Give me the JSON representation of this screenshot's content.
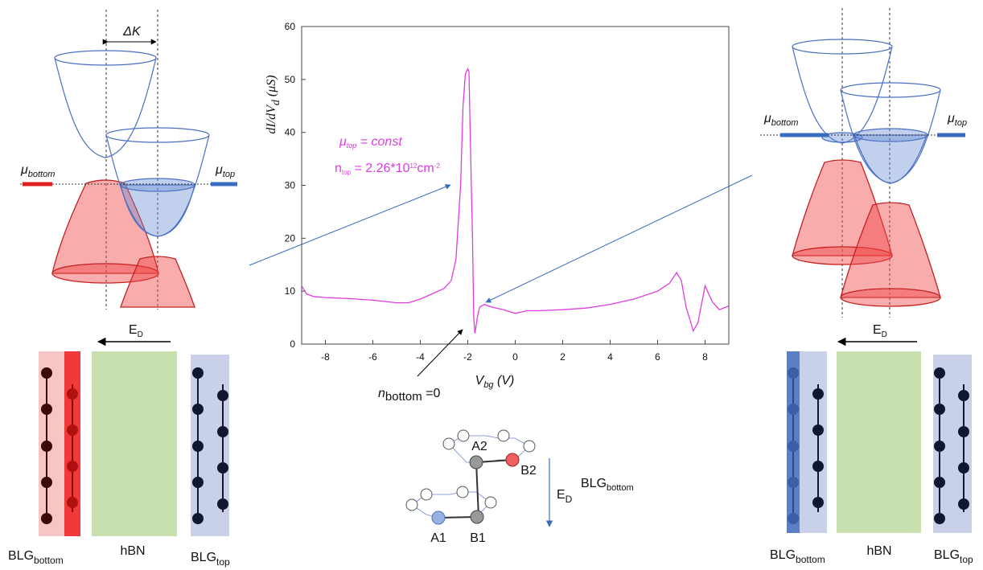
{
  "chart_data": {
    "type": "line",
    "xlabel": {
      "base": "V",
      "sub": "bg",
      "unit": " (V)"
    },
    "ylabel": {
      "base": "dI/dV",
      "sub": "d",
      "unit": " (μS)"
    },
    "xlim": [
      -9,
      9
    ],
    "ylim": [
      0,
      60
    ],
    "xticks": [
      -8,
      -6,
      -4,
      -2,
      0,
      2,
      4,
      6,
      8
    ],
    "yticks": [
      0,
      10,
      20,
      30,
      40,
      50,
      60
    ],
    "x": [
      -9,
      -8.8,
      -8.5,
      -8,
      -7,
      -6,
      -5,
      -4.5,
      -4,
      -3.5,
      -3,
      -2.7,
      -2.5,
      -2.3,
      -2.2,
      -2.1,
      -2.0,
      -1.95,
      -1.9,
      -1.8,
      -1.75,
      -1.7,
      -1.6,
      -1.5,
      -1.3,
      -1.0,
      -0.5,
      0,
      0.5,
      1,
      2,
      3,
      4,
      5,
      6,
      6.5,
      6.8,
      7.0,
      7.2,
      7.5,
      7.7,
      8.0,
      8.3,
      8.6,
      9
    ],
    "series": [
      {
        "color": "#e03ce0",
        "values": [
          11,
          9.5,
          9,
          8.8,
          8.6,
          8.3,
          7.8,
          7.8,
          8.5,
          9.5,
          10.5,
          12,
          16,
          30,
          45,
          51,
          52,
          51.5,
          40,
          20,
          5,
          2,
          5,
          7,
          7.5,
          7,
          6.5,
          5.8,
          6.3,
          6.3,
          6.5,
          6.8,
          7.5,
          8.5,
          10,
          11.5,
          13.5,
          12,
          7,
          2.5,
          4,
          11,
          8,
          6.5,
          7.2
        ]
      }
    ],
    "annotations": {
      "mu_top": {
        "base": "μ",
        "sub": "top",
        "rest": " = const"
      },
      "n_top": {
        "base": "n",
        "sub": "top",
        "rest": " = 2.26*10",
        "exp": "12",
        "unit": "cm",
        "unit_exp": "-2"
      },
      "n_bottom": {
        "base": "n",
        "sub": "bottom",
        "rest": " =0"
      }
    }
  },
  "left_panel": {
    "delta_k": "ΔK",
    "mu_bottom": {
      "base": "μ",
      "sub": "bottom"
    },
    "mu_top": {
      "base": "μ",
      "sub": "top"
    },
    "field": {
      "base": "E",
      "sub": "D"
    },
    "blg_bottom": {
      "base": "BLG",
      "sub": "bottom"
    },
    "hbn": "hBN",
    "blg_top": {
      "base": "BLG",
      "sub": "top"
    }
  },
  "right_panel": {
    "mu_bottom": {
      "base": "μ",
      "sub": "bottom"
    },
    "mu_top": {
      "base": "μ",
      "sub": "top"
    },
    "field": {
      "base": "E",
      "sub": "D"
    },
    "blg_bottom": {
      "base": "BLG",
      "sub": "bottom"
    },
    "hbn": "hBN",
    "blg_top": {
      "base": "BLG",
      "sub": "top"
    }
  },
  "lattice": {
    "sites": [
      "A1",
      "A2",
      "B1",
      "B2"
    ],
    "field": {
      "base": "E",
      "sub": "D"
    },
    "layer": {
      "base": "BLG",
      "sub": "bottom"
    }
  }
}
